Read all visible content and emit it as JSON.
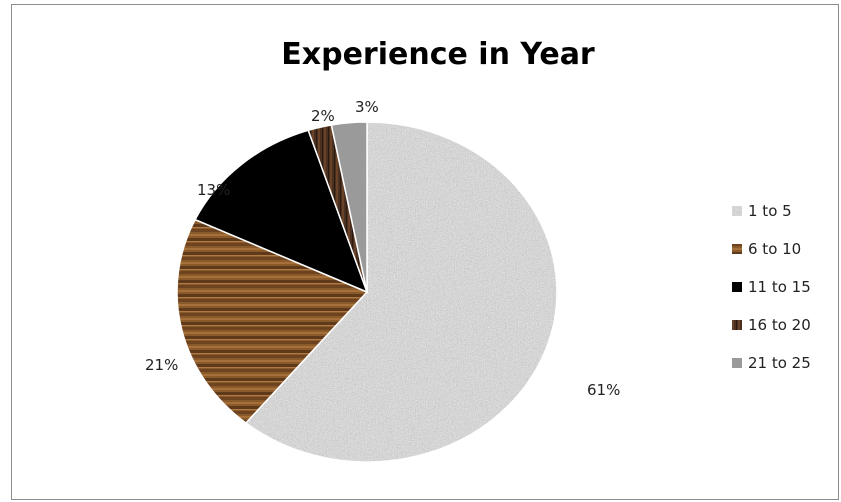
{
  "chart_data": {
    "type": "pie",
    "title": "Experience in Year",
    "categories": [
      "1 to 5",
      "6 to 10",
      "11 to 15",
      "16 to 20",
      "21 to 25"
    ],
    "values": [
      61,
      21,
      13,
      2,
      3
    ],
    "value_labels": [
      "61%",
      "21%",
      "13%",
      "2%",
      "3%"
    ],
    "colors": [
      "#b8b8b8",
      "#8a5a2b",
      "#000000",
      "#4a3020",
      "#9a9a9a"
    ],
    "legend": "right"
  }
}
